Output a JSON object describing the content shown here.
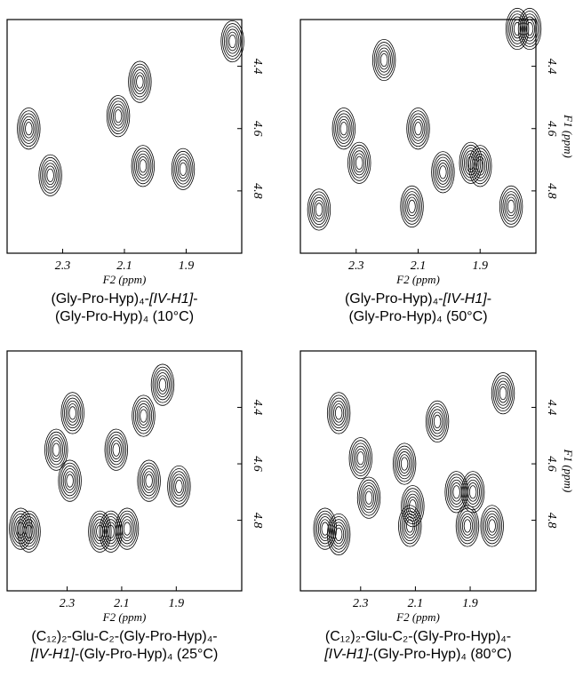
{
  "chart_data": [
    {
      "type": "contour",
      "xlim": [
        2.48,
        1.72
      ],
      "ylim": [
        4.25,
        5.0
      ],
      "xticks": [
        2.3,
        2.1,
        1.9
      ],
      "yticks": [
        4.4,
        4.6,
        4.8
      ],
      "xlabel": "F2 (ppm)",
      "caption": [
        [
          {
            "text": "(Gly-Pro-Hyp)₄-",
            "italic": false
          },
          {
            "text": "[IV-H1]",
            "italic": true
          },
          {
            "text": "-",
            "italic": false
          }
        ],
        [
          {
            "text": "(Gly-Pro-Hyp)₄ (10°C)",
            "italic": false
          }
        ]
      ],
      "peaks": {
        "x": [
          2.41,
          2.34,
          2.12,
          2.04,
          1.91,
          2.05,
          1.75
        ],
        "y": [
          4.6,
          4.75,
          4.56,
          4.72,
          4.73,
          4.45,
          4.32
        ]
      }
    },
    {
      "type": "contour",
      "xlim": [
        2.48,
        1.72
      ],
      "ylim": [
        4.25,
        5.0
      ],
      "xticks": [
        2.3,
        2.1,
        1.9
      ],
      "yticks": [
        4.4,
        4.6,
        4.8
      ],
      "xlabel": "F2 (ppm)",
      "ylabel": "F1 (ppm)",
      "caption": [
        [
          {
            "text": "(Gly-Pro-Hyp)₄-",
            "italic": false
          },
          {
            "text": "[IV-H1]",
            "italic": true
          },
          {
            "text": "-",
            "italic": false
          }
        ],
        [
          {
            "text": "(Gly-Pro-Hyp)₄ (50°C)",
            "italic": false
          }
        ]
      ],
      "peaks": {
        "x": [
          2.42,
          2.29,
          2.34,
          2.12,
          1.93,
          2.1,
          2.02,
          1.9,
          1.8,
          2.21,
          1.78,
          1.74
        ],
        "y": [
          4.86,
          4.71,
          4.6,
          4.85,
          4.71,
          4.6,
          4.74,
          4.72,
          4.85,
          4.38,
          4.28,
          4.28
        ]
      }
    },
    {
      "type": "contour",
      "xlim": [
        2.52,
        1.66
      ],
      "ylim": [
        4.2,
        5.05
      ],
      "xticks": [
        2.3,
        2.1,
        1.9
      ],
      "yticks": [
        4.4,
        4.6,
        4.8
      ],
      "xlabel": "F2 (ppm)",
      "caption": [
        [
          {
            "text": "(C₁₂)₂-Glu-C₂-(Gly-Pro-Hyp)₄-",
            "italic": false
          }
        ],
        [
          {
            "text": "[IV-H1]",
            "italic": true
          },
          {
            "text": "-(Gly-Pro-Hyp)₄ (25°C)",
            "italic": false
          }
        ]
      ],
      "peaks": {
        "x": [
          2.34,
          2.29,
          2.28,
          2.12,
          2.0,
          2.02,
          1.89,
          1.95,
          2.47,
          2.44,
          2.18,
          2.14,
          2.08
        ],
        "y": [
          4.55,
          4.66,
          4.42,
          4.55,
          4.66,
          4.43,
          4.68,
          4.32,
          4.83,
          4.84,
          4.84,
          4.84,
          4.83
        ]
      }
    },
    {
      "type": "contour",
      "xlim": [
        2.52,
        1.66
      ],
      "ylim": [
        4.2,
        5.05
      ],
      "xticks": [
        2.3,
        2.1,
        1.9
      ],
      "yticks": [
        4.4,
        4.6,
        4.8
      ],
      "xlabel": "F2 (ppm)",
      "ylabel": "F1 (ppm)",
      "caption": [
        [
          {
            "text": "(C₁₂)₂-Glu-C₂-(Gly-Pro-Hyp)₄-",
            "italic": false
          }
        ],
        [
          {
            "text": "[IV-H1]",
            "italic": true
          },
          {
            "text": "-(Gly-Pro-Hyp)₄ (80°C)",
            "italic": false
          }
        ]
      ],
      "peaks": {
        "x": [
          2.38,
          2.3,
          2.27,
          2.14,
          2.11,
          1.95,
          1.89,
          2.02,
          1.78,
          2.43,
          2.38,
          2.12,
          1.91,
          1.82
        ],
        "y": [
          4.42,
          4.58,
          4.72,
          4.6,
          4.75,
          4.7,
          4.7,
          4.45,
          4.35,
          4.83,
          4.85,
          4.82,
          4.82,
          4.82
        ]
      }
    }
  ]
}
